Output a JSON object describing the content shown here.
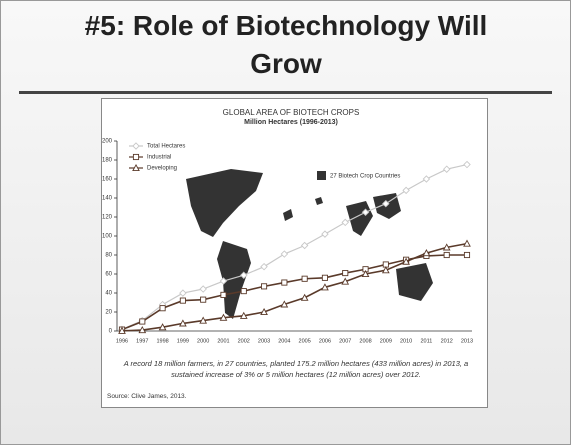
{
  "slide_title": "#5: Role of Biotechnology Will Grow",
  "chart_data": {
    "type": "line",
    "title": "GLOBAL AREA OF BIOTECH CROPS",
    "subtitle": "Million Hectares (1996-2013)",
    "annotation": "27 Biotech Crop Countries",
    "caption": "A record 18 million farmers, in 27 countries, planted 175.2 million hectares (433 million acres) in 2013, a sustained increase of 3% or 5 million hectares (12 million acres) over 2012.",
    "source": "Source: Clive James, 2013.",
    "categories": [
      "1996",
      "1997",
      "1998",
      "1999",
      "2000",
      "2001",
      "2002",
      "2003",
      "2004",
      "2005",
      "2006",
      "2007",
      "2008",
      "2009",
      "2010",
      "2011",
      "2012",
      "2013"
    ],
    "series": [
      {
        "name": "Total Hectares",
        "color": "#c8c8c8",
        "marker": "diamond",
        "values": [
          1.7,
          11,
          27.8,
          39.9,
          44.2,
          52.6,
          58.7,
          67.7,
          81,
          90,
          102,
          114.3,
          125,
          134,
          148,
          160,
          170.3,
          175.2
        ]
      },
      {
        "name": "Industrial",
        "color": "#5a3a2a",
        "marker": "square",
        "values": [
          1.5,
          10,
          24,
          32,
          33,
          38,
          42,
          47,
          51,
          55,
          56,
          61,
          65,
          70,
          75,
          79,
          80,
          80
        ]
      },
      {
        "name": "Developing",
        "color": "#5a3a2a",
        "marker": "triangle",
        "values": [
          0.2,
          1,
          4,
          8,
          11,
          14,
          16,
          20,
          28,
          35,
          46,
          52,
          60,
          64,
          73,
          82,
          88,
          92
        ]
      }
    ],
    "ylim": [
      0,
      200
    ],
    "yticks": [
      0,
      20,
      40,
      60,
      80,
      100,
      120,
      140,
      160,
      180,
      200
    ],
    "grid": false
  }
}
